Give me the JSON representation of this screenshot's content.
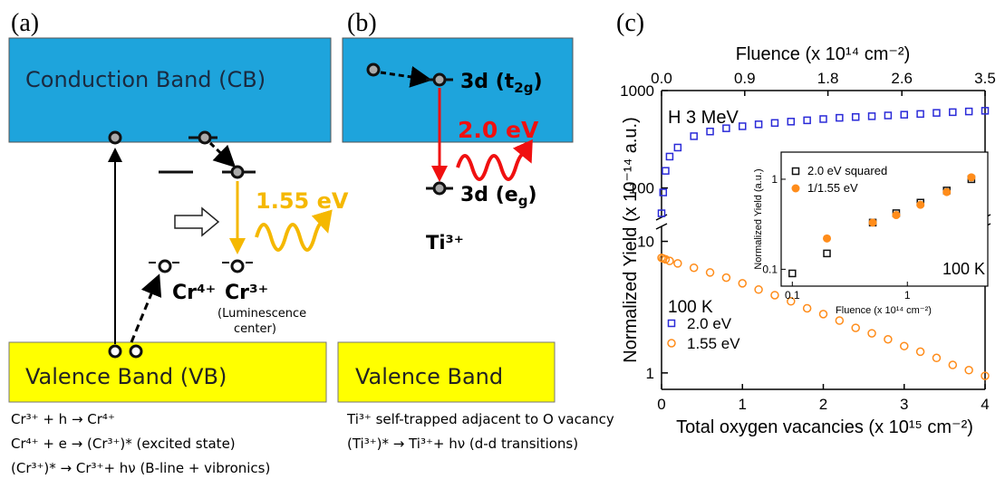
{
  "panel_a": {
    "label": "(a)",
    "conduction_band": "Conduction Band (CB)",
    "valence_band": "Valence Band (VB)",
    "energy": "1.55 eV",
    "cr4": "Cr⁴⁺",
    "cr3": "Cr³⁺",
    "center_note": [
      "(Luminescence",
      "center)"
    ],
    "equations": [
      "Cr³⁺ + h → Cr⁴⁺",
      "Cr⁴⁺ + e → (Cr³⁺)*   (excited state)",
      "(Cr³⁺)* → Cr³⁺+ hν  (B-line + vibronics)"
    ]
  },
  "panel_b": {
    "label": "(b)",
    "t2g": {
      "text": "3d (t",
      "sub": "2g",
      "close": ")"
    },
    "eg": {
      "text": "3d (e",
      "sub": "g",
      "close": ")"
    },
    "energy": "2.0 eV",
    "ion": "Ti³⁺",
    "valence_band": "Valence Band",
    "equations": [
      "Ti³⁺ self-trapped adjacent to O vacancy",
      "(Ti³⁺)* → Ti³⁺+ hν  (d-d transitions)"
    ]
  },
  "panel_c": {
    "label": "(c)"
  },
  "chart_data": [
    {
      "type": "scatter",
      "x_label": "Total oxygen vacancies (x 10¹⁵ cm⁻²)",
      "x2_label": "Fluence (x 10¹⁴ cm⁻²)",
      "y_label": "Normalized Yield (x 10⁻¹⁴ a.u.)",
      "annotations": [
        "H 3 MeV",
        "100 K"
      ],
      "x": [
        0,
        0.02,
        0.05,
        0.1,
        0.2,
        0.4,
        0.6,
        0.8,
        1.0,
        1.2,
        1.4,
        1.6,
        1.8,
        2.0,
        2.2,
        2.4,
        2.6,
        2.8,
        3.0,
        3.2,
        3.4,
        3.6,
        3.8,
        4.0
      ],
      "series": [
        {
          "name": "2.0 eV",
          "color": "#2a2ad8",
          "marker": "square",
          "values": [
            55,
            90,
            150,
            210,
            260,
            340,
            380,
            410,
            430,
            450,
            465,
            480,
            495,
            510,
            525,
            535,
            545,
            555,
            565,
            575,
            590,
            600,
            610,
            620
          ]
        },
        {
          "name": "1.55 eV",
          "color": "#ff8c1a",
          "marker": "circle",
          "values": [
            7.5,
            7.4,
            7.3,
            7.1,
            6.8,
            6.3,
            5.8,
            5.3,
            4.8,
            4.3,
            3.9,
            3.5,
            3.1,
            2.8,
            2.5,
            2.2,
            2.0,
            1.8,
            1.6,
            1.45,
            1.3,
            1.15,
            1.05,
            0.95
          ]
        }
      ],
      "xlim": [
        0,
        4
      ],
      "xticks": [
        0,
        1,
        2,
        3,
        4
      ],
      "x2lim": [
        0,
        3.5
      ],
      "x2ticks": [
        {
          "value": 0,
          "label": "0.0"
        },
        0.9,
        1.8,
        2.6,
        3.5
      ],
      "log_y": true,
      "ylim_segments": [
        [
          0.75,
          13
        ],
        [
          50,
          1000
        ]
      ],
      "yticks": [
        1,
        10,
        100,
        1000
      ]
    },
    {
      "type": "scatter",
      "x_label": "Fluence (x 10¹⁴ cm⁻²)",
      "y_label": "Normalized Yield (a.u.)",
      "annotations": [
        "100 K"
      ],
      "series": [
        {
          "name": "2.0 eV squared",
          "color": "#111111",
          "marker": "square",
          "x": [
            0.1,
            0.2,
            0.5,
            0.8,
            1.3,
            2.2,
            3.6
          ],
          "values": [
            0.09,
            0.15,
            0.33,
            0.42,
            0.55,
            0.75,
            1.0
          ]
        },
        {
          "name": "1/1.55 eV",
          "color": "#ff8c1a",
          "marker": "filled-circle",
          "x": [
            0.2,
            0.5,
            0.8,
            1.3,
            2.2,
            3.6
          ],
          "values": [
            0.22,
            0.33,
            0.4,
            0.52,
            0.72,
            1.05
          ]
        }
      ],
      "log_x": true,
      "log_y": true,
      "xlim": [
        0.08,
        5
      ],
      "xticks": [
        0.1,
        1
      ],
      "ylim": [
        0.065,
        2
      ],
      "yticks": [
        0.1,
        1
      ]
    }
  ]
}
